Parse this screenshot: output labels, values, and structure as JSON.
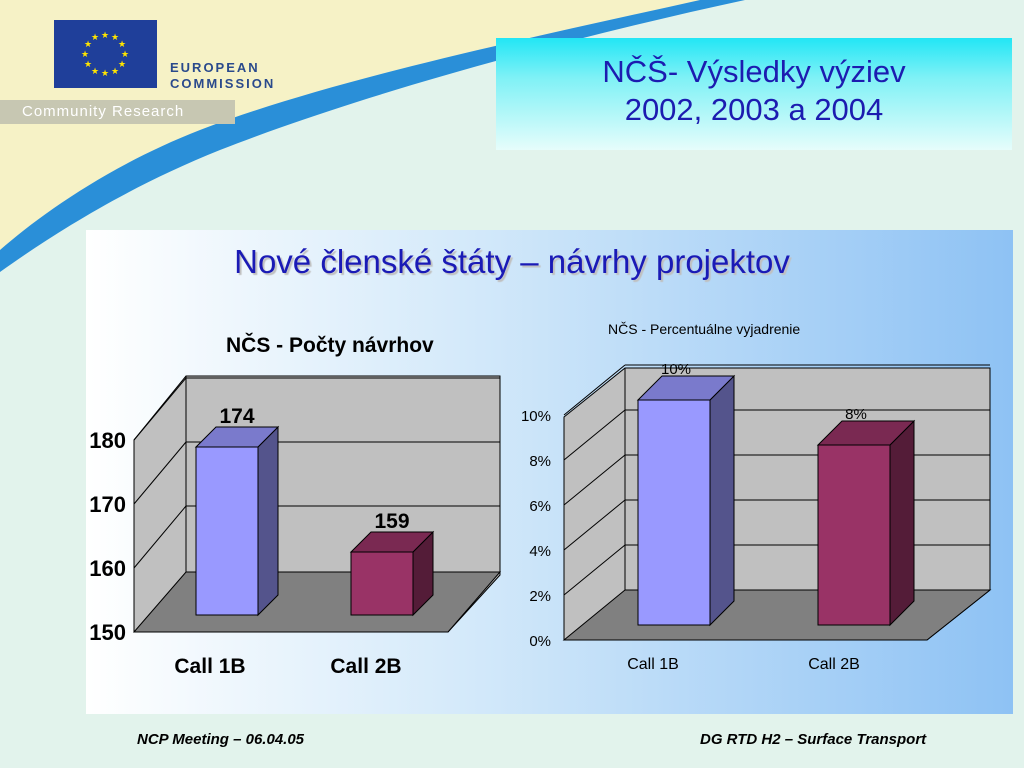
{
  "header": {
    "org_name_line1": "EUROPEAN",
    "org_name_line2": "COMMISSION",
    "division": "Community Research"
  },
  "slide_title": {
    "line1": "NČŠ- Výsledky výziev",
    "line2": "2002, 2003 a 2004"
  },
  "panel_title": "Nové členské štáty – návrhy projektov",
  "footer": {
    "left": "NCP Meeting – 06.04.05",
    "right": "DG RTD H2 – Surface Transport"
  },
  "colors": {
    "title_text": "#1c1cb0",
    "bar_call1b": "#9999ff",
    "bar_call2b": "#993366",
    "chart_floor": "#808080",
    "chart_walls": "#c0c0c0"
  },
  "chart_data": [
    {
      "type": "bar",
      "title": "NČS - Počty návrhov",
      "categories": [
        "Call 1B",
        "Call 2B"
      ],
      "values": [
        174,
        159
      ],
      "data_labels": [
        "174",
        "159"
      ],
      "ylim": [
        150,
        180
      ],
      "yticks": [
        "150",
        "160",
        "170",
        "180"
      ],
      "grid": true,
      "three_d": true
    },
    {
      "type": "bar",
      "title": "NČS - Percentuálne vyjadrenie",
      "categories": [
        "Call 1B",
        "Call 2B"
      ],
      "values": [
        10,
        8
      ],
      "data_labels": [
        "10%",
        "8%"
      ],
      "ylim": [
        0,
        10
      ],
      "yticks": [
        "0%",
        "2%",
        "4%",
        "6%",
        "8%",
        "10%"
      ],
      "grid": true,
      "three_d": true
    }
  ]
}
